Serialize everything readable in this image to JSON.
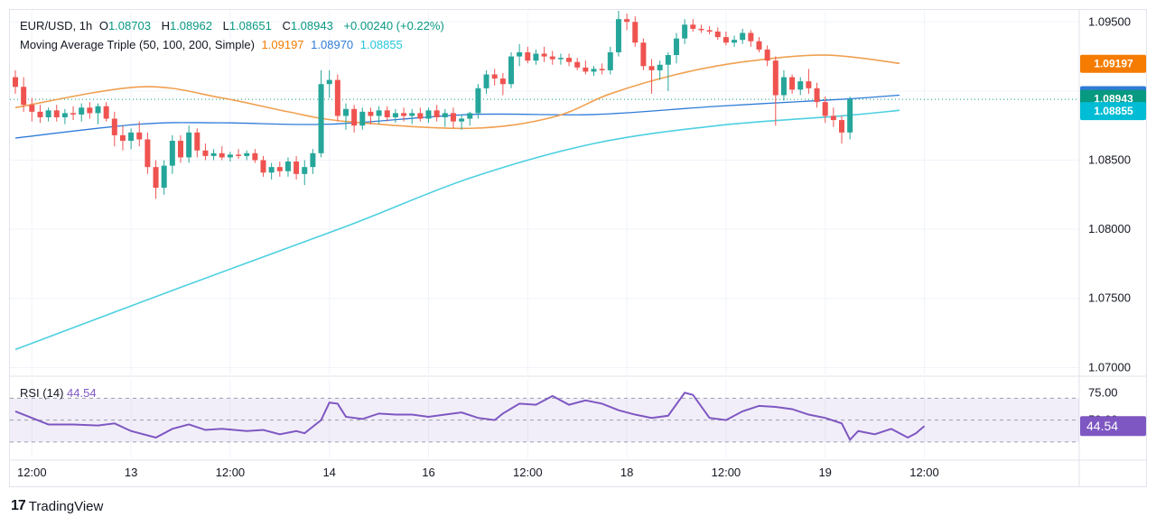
{
  "legend": {
    "symbol": "EUR/USD, 1h",
    "open_label": "O",
    "open": "1.08703",
    "high_label": "H",
    "high": "1.08962",
    "low_label": "L",
    "low": "1.08651",
    "close_label": "C",
    "close": "1.08943",
    "change": "+0.00240 (+0.22%)",
    "ma_name": "Moving Average Triple (50, 100, 200, Simple)",
    "ma50": "1.09197",
    "ma100": "1.08970",
    "ma200": "1.08855"
  },
  "rsi_legend": {
    "name": "RSI (14)",
    "value": "44.54"
  },
  "branding": {
    "logo_text": "TradingView",
    "logo_mark": "17"
  },
  "chart_data": {
    "type": "candlestick",
    "price_axis": {
      "ticks": [
        "1.09500",
        "1.09000",
        "1.08500",
        "1.08000",
        "1.07500",
        "1.07000"
      ],
      "ylim": [
        1.0695,
        1.0958
      ],
      "badges": [
        {
          "text": "1.09197",
          "value": 1.09197,
          "color": "#f57c00"
        },
        {
          "text": "1.08970",
          "value": 1.0897,
          "color": "#2f7bd8"
        },
        {
          "text": "1.08943",
          "value": 1.08943,
          "color": "#089981"
        },
        {
          "text": "1.08855",
          "value": 1.08855,
          "color": "#00bcd4"
        }
      ]
    },
    "rsi_axis": {
      "ticks": [
        "75.00",
        "50.00"
      ],
      "ylim": [
        20,
        81
      ],
      "levels": [
        70,
        50,
        30
      ],
      "badge": "44.54"
    },
    "x_labels": [
      "12:00",
      "13",
      "12:00",
      "14",
      "16",
      "12:00",
      "18",
      "12:00",
      "19",
      "12:00"
    ],
    "x_label_bars": [
      2,
      14,
      26,
      38,
      50,
      62,
      74,
      86,
      98,
      110
    ],
    "candles": [
      [
        1.091,
        1.0915,
        1.0898,
        1.0903
      ],
      [
        1.0903,
        1.091,
        1.0885,
        1.089
      ],
      [
        1.089,
        1.0895,
        1.0878,
        1.0885
      ],
      [
        1.0885,
        1.089,
        1.0877,
        1.0881
      ],
      [
        1.0881,
        1.0888,
        1.0878,
        1.0886
      ],
      [
        1.0886,
        1.089,
        1.0878,
        1.0881
      ],
      [
        1.0881,
        1.0887,
        1.0876,
        1.0884
      ],
      [
        1.0884,
        1.0889,
        1.0879,
        1.0883
      ],
      [
        1.0883,
        1.0891,
        1.0878,
        1.0888
      ],
      [
        1.0888,
        1.0892,
        1.088,
        1.0884
      ],
      [
        1.0884,
        1.0891,
        1.0876,
        1.0889
      ],
      [
        1.0889,
        1.0892,
        1.0878,
        1.088
      ],
      [
        1.088,
        1.0885,
        1.086,
        1.0868
      ],
      [
        1.0868,
        1.0875,
        1.0857,
        1.0864
      ],
      [
        1.0864,
        1.0873,
        1.0858,
        1.087
      ],
      [
        1.087,
        1.0878,
        1.086,
        1.0865
      ],
      [
        1.0865,
        1.087,
        1.084,
        1.0845
      ],
      [
        1.0845,
        1.085,
        1.0822,
        1.083
      ],
      [
        1.083,
        1.085,
        1.0825,
        1.0846
      ],
      [
        1.0846,
        1.0868,
        1.084,
        1.0864
      ],
      [
        1.0864,
        1.0868,
        1.0848,
        1.0852
      ],
      [
        1.0852,
        1.0875,
        1.0848,
        1.087
      ],
      [
        1.087,
        1.0873,
        1.0852,
        1.0857
      ],
      [
        1.0857,
        1.0862,
        1.085,
        1.0853
      ],
      [
        1.0853,
        1.0858,
        1.085,
        1.0855
      ],
      [
        1.0855,
        1.086,
        1.085,
        1.0852
      ],
      [
        1.0852,
        1.0856,
        1.0849,
        1.0854
      ],
      [
        1.0854,
        1.0858,
        1.0851,
        1.0853
      ],
      [
        1.0853,
        1.0857,
        1.085,
        1.0855
      ],
      [
        1.0855,
        1.0858,
        1.0848,
        1.085
      ],
      [
        1.085,
        1.0853,
        1.0838,
        1.0841
      ],
      [
        1.0841,
        1.0848,
        1.0836,
        1.0845
      ],
      [
        1.0845,
        1.0849,
        1.0838,
        1.0842
      ],
      [
        1.0842,
        1.0852,
        1.0838,
        1.0849
      ],
      [
        1.0849,
        1.0853,
        1.0836,
        1.084
      ],
      [
        1.084,
        1.085,
        1.0832,
        1.0845
      ],
      [
        1.0845,
        1.0858,
        1.084,
        1.0855
      ],
      [
        1.0855,
        1.0915,
        1.0852,
        1.0905
      ],
      [
        1.0905,
        1.0915,
        1.0895,
        1.0908
      ],
      [
        1.0908,
        1.0912,
        1.0878,
        1.0882
      ],
      [
        1.0882,
        1.0891,
        1.0872,
        1.0887
      ],
      [
        1.0887,
        1.089,
        1.087,
        1.0875
      ],
      [
        1.0875,
        1.0888,
        1.0872,
        1.0885
      ],
      [
        1.0885,
        1.0888,
        1.0876,
        1.0882
      ],
      [
        1.0882,
        1.0889,
        1.0876,
        1.0886
      ],
      [
        1.0886,
        1.0889,
        1.0878,
        1.0881
      ],
      [
        1.0881,
        1.0887,
        1.0877,
        1.0884
      ],
      [
        1.0884,
        1.0888,
        1.0878,
        1.0882
      ],
      [
        1.0882,
        1.0887,
        1.0876,
        1.0884
      ],
      [
        1.0884,
        1.0888,
        1.0878,
        1.088
      ],
      [
        1.088,
        1.0888,
        1.0877,
        1.0886
      ],
      [
        1.0886,
        1.089,
        1.0878,
        1.0881
      ],
      [
        1.0881,
        1.0887,
        1.0874,
        1.0884
      ],
      [
        1.0884,
        1.0888,
        1.0873,
        1.0878
      ],
      [
        1.0878,
        1.0883,
        1.0872,
        1.088
      ],
      [
        1.088,
        1.0885,
        1.0875,
        1.0884
      ],
      [
        1.0884,
        1.0905,
        1.088,
        1.0902
      ],
      [
        1.0902,
        1.0915,
        1.0898,
        1.0912
      ],
      [
        1.0912,
        1.0916,
        1.0904,
        1.0909
      ],
      [
        1.0909,
        1.0913,
        1.0897,
        1.0905
      ],
      [
        1.0905,
        1.0928,
        1.0902,
        1.0925
      ],
      [
        1.0925,
        1.0934,
        1.0918,
        1.0928
      ],
      [
        1.0928,
        1.0932,
        1.092,
        1.0922
      ],
      [
        1.0922,
        1.093,
        1.0919,
        1.0927
      ],
      [
        1.0927,
        1.0932,
        1.0921,
        1.0925
      ],
      [
        1.0925,
        1.0929,
        1.0919,
        1.0923
      ],
      [
        1.0923,
        1.0927,
        1.0919,
        1.0924
      ],
      [
        1.0924,
        1.0927,
        1.0918,
        1.0921
      ],
      [
        1.0921,
        1.0924,
        1.0915,
        1.0917
      ],
      [
        1.0917,
        1.0922,
        1.0912,
        1.0914
      ],
      [
        1.0914,
        1.0918,
        1.0911,
        1.0916
      ],
      [
        1.0916,
        1.092,
        1.0912,
        1.0915
      ],
      [
        1.0915,
        1.0932,
        1.0912,
        1.0928
      ],
      [
        1.0928,
        1.0958,
        1.0925,
        1.0952
      ],
      [
        1.0952,
        1.0956,
        1.0944,
        1.095
      ],
      [
        1.095,
        1.0954,
        1.0932,
        1.0935
      ],
      [
        1.0935,
        1.0938,
        1.0915,
        1.0918
      ],
      [
        1.0918,
        1.0923,
        1.0898,
        1.0915
      ],
      [
        1.0915,
        1.0922,
        1.0908,
        1.0919
      ],
      [
        1.0919,
        1.0928,
        1.09,
        1.0926
      ],
      [
        1.0926,
        1.0942,
        1.092,
        1.0938
      ],
      [
        1.0938,
        1.0952,
        1.0934,
        1.0948
      ],
      [
        1.0948,
        1.0952,
        1.0943,
        1.0945
      ],
      [
        1.0945,
        1.0948,
        1.0942,
        1.0944
      ],
      [
        1.0944,
        1.0947,
        1.0941,
        1.0943
      ],
      [
        1.0943,
        1.0946,
        1.0937,
        1.0939
      ],
      [
        1.0939,
        1.0943,
        1.0933,
        1.0935
      ],
      [
        1.0935,
        1.094,
        1.0932,
        1.0937
      ],
      [
        1.0937,
        1.0945,
        1.0934,
        1.0942
      ],
      [
        1.0942,
        1.0944,
        1.0932,
        1.0936
      ],
      [
        1.0936,
        1.0939,
        1.0928,
        1.093
      ],
      [
        1.093,
        1.0933,
        1.0918,
        1.0922
      ],
      [
        1.0922,
        1.0925,
        1.0875,
        1.0897
      ],
      [
        1.0897,
        1.0915,
        1.0893,
        1.091
      ],
      [
        1.091,
        1.0912,
        1.0898,
        1.0901
      ],
      [
        1.0901,
        1.091,
        1.0897,
        1.0907
      ],
      [
        1.0907,
        1.0916,
        1.0898,
        1.0902
      ],
      [
        1.0902,
        1.0906,
        1.0888,
        1.0892
      ],
      [
        1.0892,
        1.0896,
        1.0877,
        1.0882
      ],
      [
        1.0882,
        1.0888,
        1.0874,
        1.0879
      ],
      [
        1.0879,
        1.0882,
        1.0862,
        1.087
      ],
      [
        1.087,
        1.0896,
        1.0865,
        1.0894
      ]
    ],
    "ma50": [
      [
        0,
        1.0888
      ],
      [
        15,
        1.0903
      ],
      [
        25,
        1.0895
      ],
      [
        33,
        1.0885
      ],
      [
        40,
        1.0878
      ],
      [
        55,
        1.0873
      ],
      [
        65,
        1.0881
      ],
      [
        72,
        1.0898
      ],
      [
        80,
        1.0912
      ],
      [
        88,
        1.0921
      ],
      [
        98,
        1.0926
      ],
      [
        107,
        1.092
      ]
    ],
    "ma100": [
      [
        0,
        1.0866
      ],
      [
        15,
        1.0876
      ],
      [
        25,
        1.0877
      ],
      [
        38,
        1.0876
      ],
      [
        55,
        1.0883
      ],
      [
        70,
        1.0883
      ],
      [
        85,
        1.0889
      ],
      [
        100,
        1.0894
      ],
      [
        107,
        1.0897
      ]
    ],
    "ma200": [
      [
        0,
        1.0713
      ],
      [
        20,
        1.0758
      ],
      [
        40,
        1.0802
      ],
      [
        55,
        1.0837
      ],
      [
        70,
        1.0862
      ],
      [
        85,
        1.0875
      ],
      [
        100,
        1.0882
      ],
      [
        107,
        1.0886
      ]
    ],
    "rsi": [
      [
        0,
        58
      ],
      [
        2,
        52
      ],
      [
        4,
        46
      ],
      [
        7,
        46
      ],
      [
        10,
        45
      ],
      [
        12,
        47
      ],
      [
        14,
        40
      ],
      [
        17,
        34
      ],
      [
        19,
        42
      ],
      [
        21,
        46
      ],
      [
        23,
        41
      ],
      [
        25,
        42
      ],
      [
        28,
        40
      ],
      [
        30,
        41
      ],
      [
        32,
        37
      ],
      [
        34,
        40
      ],
      [
        35,
        38
      ],
      [
        37,
        50
      ],
      [
        38,
        66
      ],
      [
        39,
        65
      ],
      [
        40,
        53
      ],
      [
        42,
        51
      ],
      [
        44,
        56
      ],
      [
        46,
        55
      ],
      [
        48,
        55
      ],
      [
        50,
        53
      ],
      [
        52,
        55
      ],
      [
        54,
        57
      ],
      [
        56,
        52
      ],
      [
        58,
        50
      ],
      [
        59,
        56
      ],
      [
        61,
        65
      ],
      [
        63,
        64
      ],
      [
        65,
        72
      ],
      [
        67,
        64
      ],
      [
        69,
        68
      ],
      [
        71,
        65
      ],
      [
        73,
        59
      ],
      [
        75,
        55
      ],
      [
        77,
        52
      ],
      [
        79,
        54
      ],
      [
        81,
        75
      ],
      [
        82,
        73
      ],
      [
        84,
        52
      ],
      [
        86,
        50
      ],
      [
        88,
        58
      ],
      [
        90,
        63
      ],
      [
        92,
        62
      ],
      [
        94,
        60
      ],
      [
        96,
        55
      ],
      [
        98,
        52
      ],
      [
        100,
        47
      ],
      [
        101,
        32
      ],
      [
        102,
        40
      ],
      [
        104,
        37
      ],
      [
        106,
        42
      ],
      [
        108,
        34
      ],
      [
        109,
        38
      ],
      [
        110,
        44.5
      ]
    ]
  }
}
